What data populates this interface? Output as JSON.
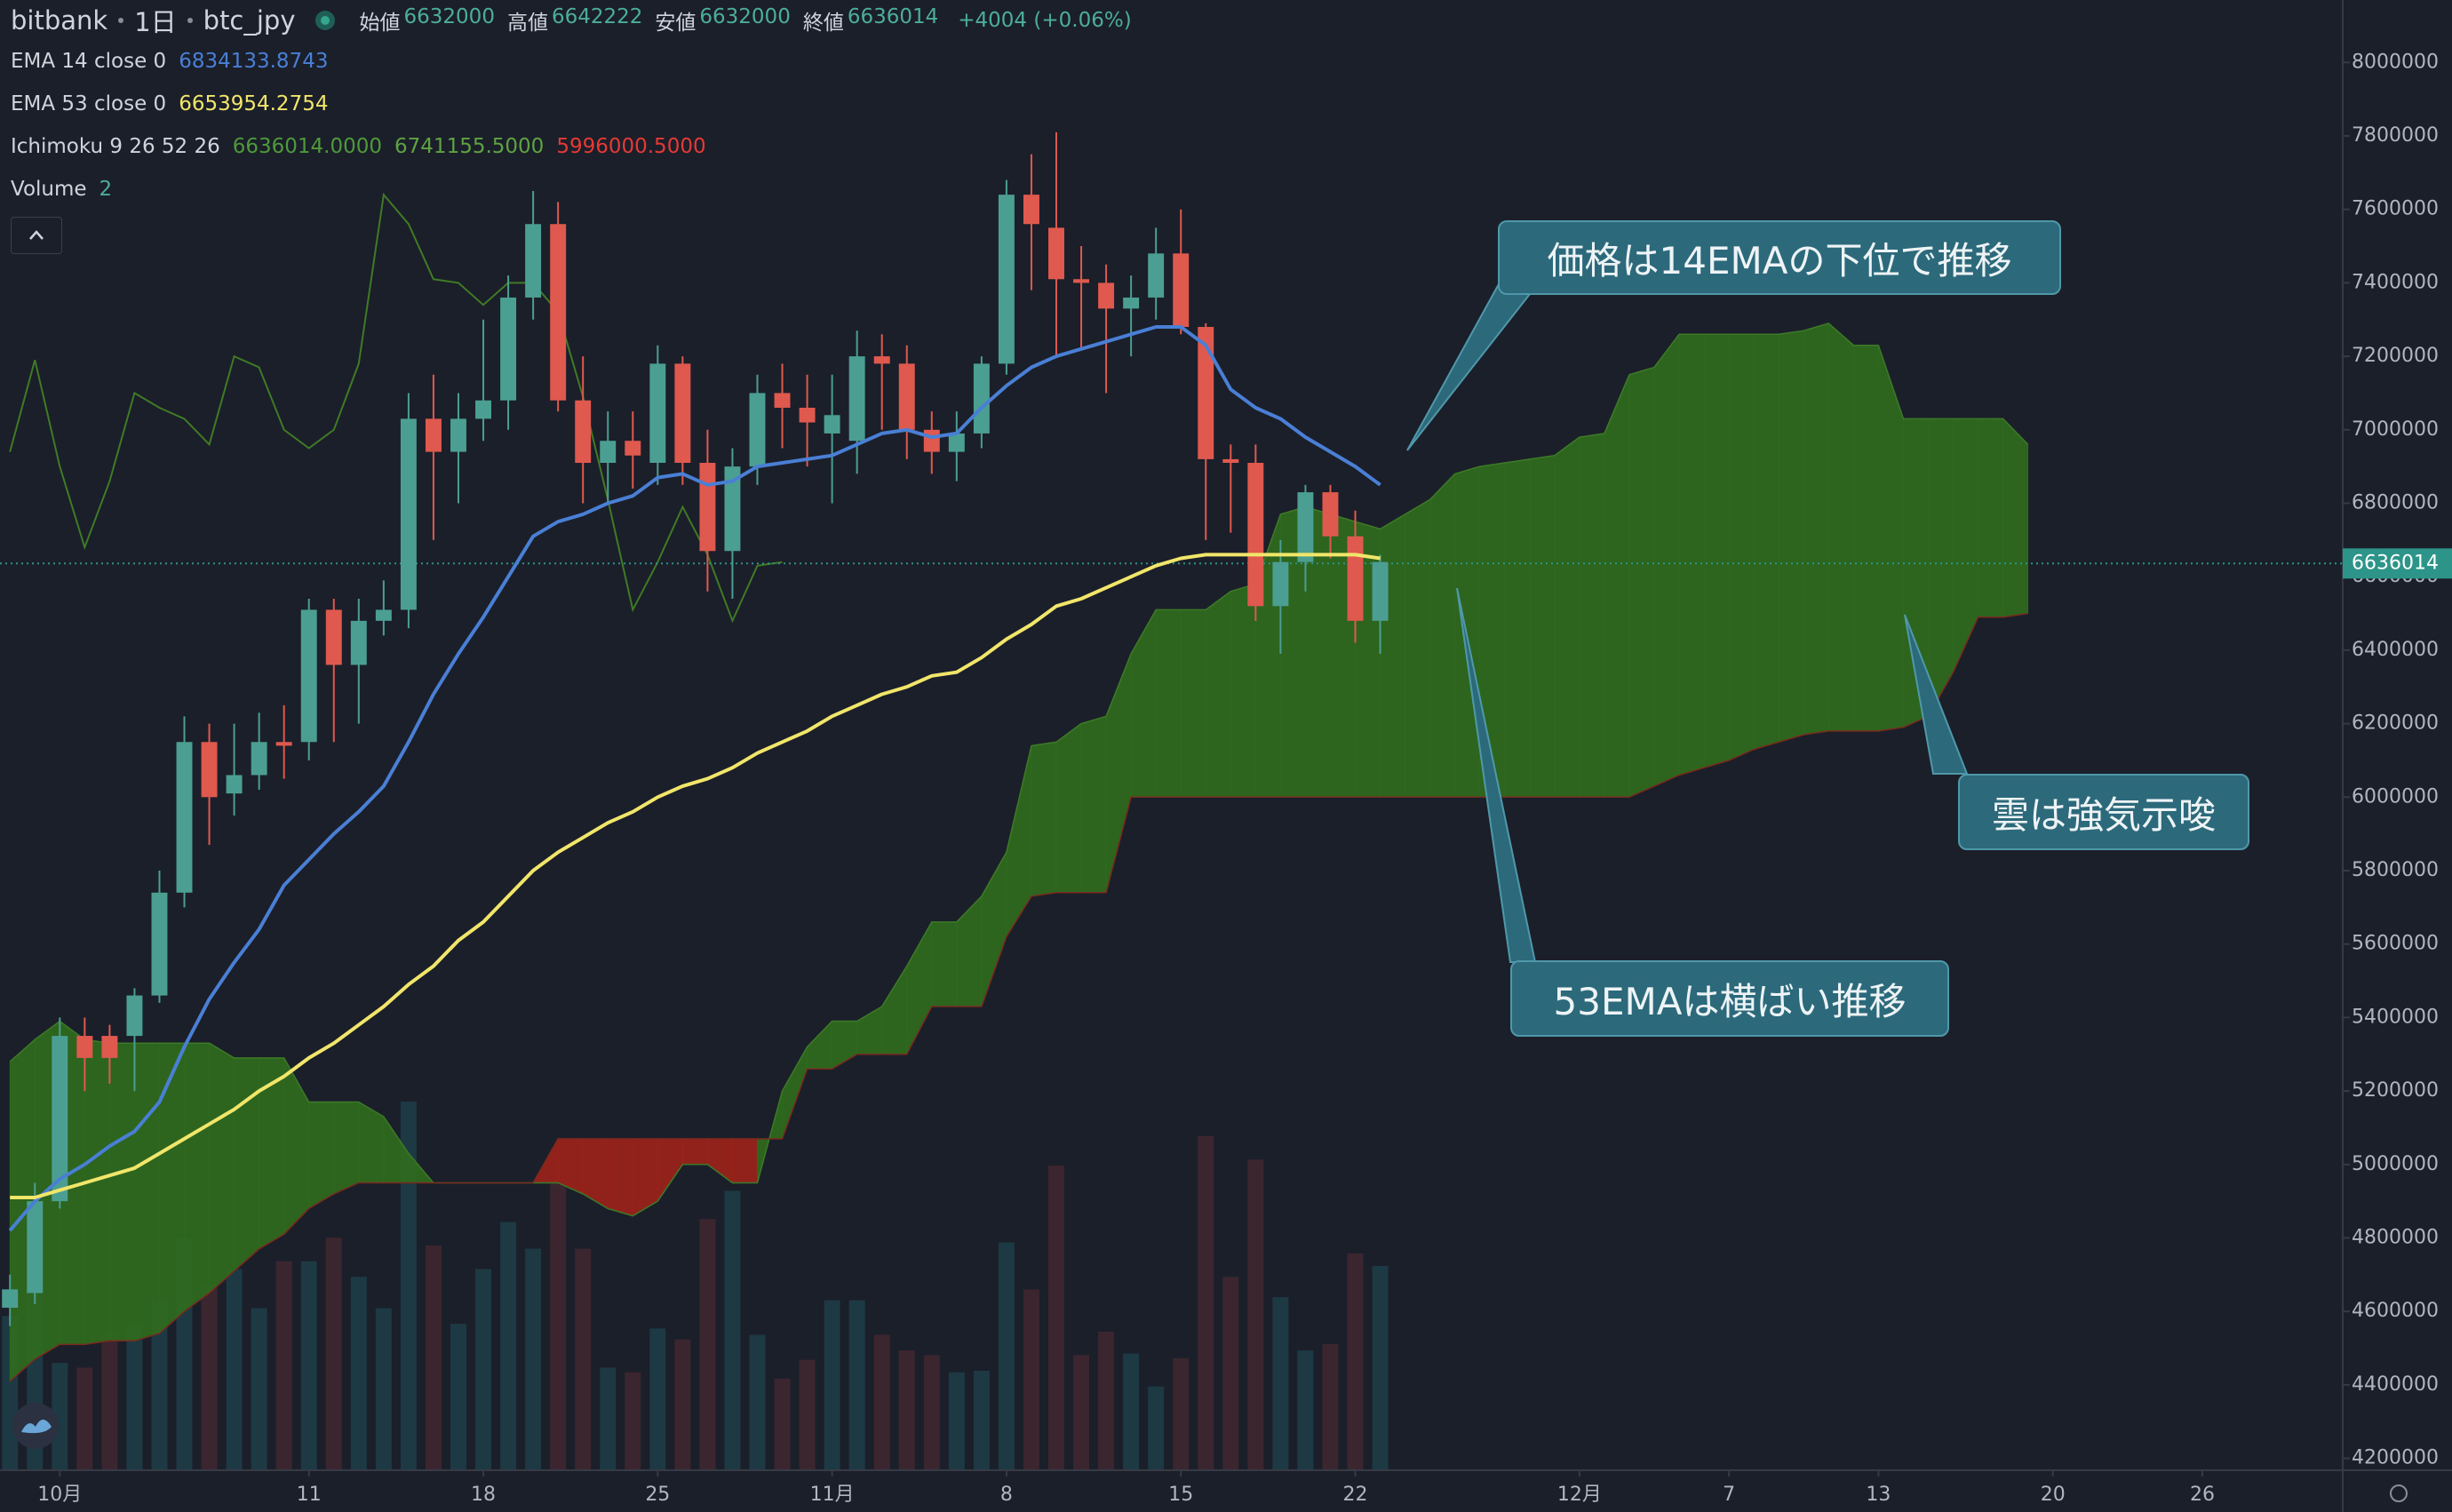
{
  "chart_data": {
    "type": "candlestick",
    "header": {
      "exchange": "bitbank",
      "interval": "1日",
      "symbol": "btc_jpy",
      "ohlc": [
        {
          "label": "始値",
          "value": "6632000"
        },
        {
          "label": "高値",
          "value": "6642222"
        },
        {
          "label": "安値",
          "value": "6632000"
        },
        {
          "label": "終値",
          "value": "6636014"
        }
      ],
      "change": "+4004 (+0.06%)"
    },
    "x": [
      0,
      1,
      2,
      3,
      4,
      5,
      6,
      7,
      8,
      9,
      10,
      11,
      12,
      13,
      14,
      15,
      16,
      17,
      18,
      19,
      20,
      21,
      22,
      23,
      24,
      25,
      26,
      27,
      28,
      29,
      30,
      31,
      32,
      33,
      34,
      35,
      36,
      37,
      38,
      39,
      40,
      41,
      42,
      43,
      44,
      45,
      46,
      47,
      48,
      49,
      50,
      51,
      52,
      53,
      54,
      55
    ],
    "open": [
      4610000,
      4650000,
      4900000,
      5350000,
      5350000,
      5350000,
      5460000,
      5740000,
      6150000,
      6010000,
      6060000,
      6150000,
      6150000,
      6510000,
      6360000,
      6480000,
      6510000,
      7030000,
      6940000,
      7030000,
      7080000,
      7360000,
      7560000,
      7080000,
      6910000,
      6970000,
      6910000,
      7180000,
      6910000,
      6670000,
      6900000,
      7100000,
      7060000,
      6990000,
      6970000,
      7200000,
      7180000,
      7000000,
      6940000,
      6990000,
      7180000,
      7640000,
      7550000,
      7410000,
      7400000,
      7330000,
      7360000,
      7480000,
      7280000,
      6920000,
      6910000,
      6520000,
      6640000,
      6830000,
      6710000,
      6480000
    ],
    "high": [
      4700000,
      4950000,
      5400000,
      5400000,
      5380000,
      5480000,
      5800000,
      6220000,
      6200000,
      6200000,
      6230000,
      6250000,
      6540000,
      6540000,
      6540000,
      6590000,
      7100000,
      7150000,
      7100000,
      7300000,
      7420000,
      7650000,
      7620000,
      7200000,
      7050000,
      7050000,
      7230000,
      7200000,
      7000000,
      6950000,
      7150000,
      7180000,
      7150000,
      7150000,
      7270000,
      7260000,
      7230000,
      7050000,
      7050000,
      7200000,
      7680000,
      7750000,
      7810000,
      7500000,
      7450000,
      7420000,
      7550000,
      7600000,
      7290000,
      6960000,
      6960000,
      6700000,
      6850000,
      6850000,
      6780000,
      6660000
    ],
    "low": [
      4560000,
      4620000,
      4880000,
      5200000,
      5220000,
      5200000,
      5440000,
      5700000,
      5870000,
      5950000,
      6020000,
      6050000,
      6100000,
      6150000,
      6200000,
      6440000,
      6460000,
      6700000,
      6800000,
      6970000,
      7000000,
      7300000,
      7050000,
      6800000,
      6800000,
      6840000,
      6850000,
      6850000,
      6560000,
      6540000,
      6850000,
      6950000,
      6900000,
      6800000,
      6880000,
      7000000,
      6920000,
      6880000,
      6860000,
      6950000,
      7150000,
      7380000,
      7200000,
      7220000,
      7100000,
      7200000,
      7300000,
      7260000,
      6700000,
      6720000,
      6480000,
      6390000,
      6560000,
      6650000,
      6420000,
      6390000
    ],
    "close": [
      4660000,
      4900000,
      5350000,
      5290000,
      5290000,
      5460000,
      5740000,
      6150000,
      6000000,
      6060000,
      6150000,
      6140000,
      6510000,
      6360000,
      6480000,
      6510000,
      7030000,
      6940000,
      7030000,
      7080000,
      7360000,
      7560000,
      7080000,
      6910000,
      6970000,
      6930000,
      7180000,
      6910000,
      6670000,
      6900000,
      7100000,
      7060000,
      7020000,
      7040000,
      7200000,
      7180000,
      7000000,
      6940000,
      6990000,
      7180000,
      7640000,
      7560000,
      7410000,
      7400000,
      7330000,
      7360000,
      7480000,
      7280000,
      6920000,
      6910000,
      6520000,
      6640000,
      6830000,
      6710000,
      6480000,
      6640000
    ],
    "volume": [
      98,
      138,
      68,
      65,
      88,
      93,
      108,
      148,
      118,
      128,
      103,
      133,
      133,
      148,
      123,
      103,
      235,
      143,
      93,
      128,
      158,
      141,
      183,
      141,
      65,
      62,
      90,
      83,
      160,
      178,
      86,
      58,
      70,
      108,
      108,
      86,
      76,
      73,
      62,
      63,
      145,
      115,
      194,
      73,
      88,
      74,
      53,
      71,
      213,
      123,
      198,
      110,
      76,
      80,
      138,
      130
    ],
    "up_color": "#4b9e92",
    "down_color": "#e0594e",
    "volume_up_color": "#1d3a44",
    "volume_down_color": "#3b2630",
    "volume_label": "Volume",
    "volume_setting": 2,
    "ema": [
      {
        "label": "EMA 14 close 0",
        "last": "6834133.8743",
        "color": "#4a7fd6",
        "values": [
          4820000,
          4900000,
          4960000,
          5000000,
          5050000,
          5090000,
          5170000,
          5320000,
          5450000,
          5550000,
          5640000,
          5760000,
          5830000,
          5900000,
          5960000,
          6030000,
          6150000,
          6280000,
          6390000,
          6490000,
          6600000,
          6710000,
          6750000,
          6770000,
          6800000,
          6820000,
          6870000,
          6880000,
          6850000,
          6860000,
          6900000,
          6910000,
          6920000,
          6930000,
          6960000,
          6990000,
          7000000,
          6980000,
          6990000,
          7060000,
          7120000,
          7170000,
          7200000,
          7220000,
          7240000,
          7260000,
          7280000,
          7280000,
          7230000,
          7110000,
          7060000,
          7030000,
          6980000,
          6940000,
          6900000,
          6850000
        ]
      },
      {
        "label": "EMA 53 close 0",
        "last": "6653954.2754",
        "color": "#f2e66a",
        "values": [
          4910000,
          4910000,
          4930000,
          4950000,
          4970000,
          4990000,
          5030000,
          5070000,
          5110000,
          5150000,
          5200000,
          5240000,
          5290000,
          5330000,
          5380000,
          5430000,
          5490000,
          5540000,
          5610000,
          5660000,
          5730000,
          5800000,
          5850000,
          5890000,
          5930000,
          5960000,
          6000000,
          6030000,
          6050000,
          6080000,
          6120000,
          6150000,
          6180000,
          6220000,
          6250000,
          6280000,
          6300000,
          6330000,
          6340000,
          6380000,
          6430000,
          6470000,
          6520000,
          6540000,
          6570000,
          6600000,
          6630000,
          6650000,
          6660000,
          6660000,
          6660000,
          6660000,
          6660000,
          6660000,
          6660000,
          6650000
        ]
      }
    ],
    "ichimoku": {
      "label": "Ichimoku 9 26 52 26",
      "last": [
        "6636014.0000",
        "6741155.5000",
        "5996000.5000"
      ],
      "last_colors": [
        "#4e9a3a",
        "#5fa241",
        "#e53935"
      ],
      "bull_color": "#2f6b1e",
      "bear_color": "#9b231a",
      "span_a_color": "#3d7a27",
      "span_b_color": "#7a2a1c",
      "lagging_color": "#3f7a24",
      "x": [
        0,
        1,
        2,
        3,
        4,
        5,
        6,
        7,
        8,
        9,
        10,
        11,
        12,
        13,
        14,
        15,
        16,
        17,
        18,
        19,
        20,
        21,
        22,
        23,
        24,
        25,
        26,
        27,
        28,
        29,
        30,
        31,
        32,
        33,
        34,
        35,
        36,
        37,
        38,
        39,
        40,
        41,
        42,
        43,
        44,
        45,
        46,
        47,
        48,
        49,
        50,
        51,
        52,
        53,
        54,
        55,
        56,
        57,
        58,
        59,
        60,
        61,
        62,
        63,
        64,
        65,
        66,
        67,
        68,
        69,
        70,
        71,
        72,
        73,
        74,
        75,
        76,
        77,
        78,
        79,
        80,
        81
      ],
      "span_a": [
        5280000,
        5340000,
        5390000,
        5340000,
        5330000,
        5330000,
        5330000,
        5330000,
        5330000,
        5290000,
        5290000,
        5290000,
        5170000,
        5170000,
        5170000,
        5130000,
        5030000,
        4950000,
        4950000,
        4950000,
        4950000,
        4950000,
        4950000,
        4920000,
        4880000,
        4860000,
        4900000,
        5000000,
        5000000,
        4950000,
        4950000,
        5200000,
        5320000,
        5390000,
        5390000,
        5430000,
        5540000,
        5660000,
        5660000,
        5730000,
        5850000,
        6140000,
        6150000,
        6200000,
        6220000,
        6390000,
        6510000,
        6510000,
        6510000,
        6560000,
        6580000,
        6770000,
        6790000,
        6770000,
        6750000,
        6730000,
        6770000,
        6810000,
        6880000,
        6900000,
        6910000,
        6920000,
        6930000,
        6980000,
        6990000,
        7150000,
        7170000,
        7260000,
        7260000,
        7260000,
        7260000,
        7260000,
        7270000,
        7290000,
        7230000,
        7230000,
        7030000,
        7030000,
        7030000,
        7030000,
        7030000,
        6960000
      ],
      "span_b": [
        4410000,
        4470000,
        4510000,
        4510000,
        4520000,
        4520000,
        4540000,
        4600000,
        4650000,
        4710000,
        4770000,
        4810000,
        4880000,
        4920000,
        4950000,
        4950000,
        4950000,
        4950000,
        4950000,
        4950000,
        4950000,
        4950000,
        5070000,
        5070000,
        5070000,
        5070000,
        5070000,
        5070000,
        5070000,
        5070000,
        5070000,
        5070000,
        5260000,
        5260000,
        5300000,
        5300000,
        5300000,
        5430000,
        5430000,
        5430000,
        5620000,
        5730000,
        5740000,
        5740000,
        5740000,
        6000000,
        6000000,
        6000000,
        6000000,
        6000000,
        6000000,
        6000000,
        6000000,
        6000000,
        6000000,
        6000000,
        6000000,
        6000000,
        6000000,
        6000000,
        6000000,
        6000000,
        6000000,
        6000000,
        6000000,
        6000000,
        6030000,
        6060000,
        6080000,
        6100000,
        6130000,
        6150000,
        6170000,
        6180000,
        6180000,
        6180000,
        6190000,
        6220000,
        6340000,
        6490000,
        6490000,
        6500000
      ],
      "lagging_x": [
        0,
        1,
        2,
        3,
        4,
        5,
        6,
        7,
        8,
        9,
        10,
        11,
        12,
        13,
        14,
        15,
        16,
        17,
        18,
        19,
        20,
        21,
        22,
        23,
        24,
        25,
        26,
        27,
        28,
        29,
        30,
        31
      ],
      "lagging": [
        6940000,
        7190000,
        6900000,
        6680000,
        6860000,
        7100000,
        7060000,
        7030000,
        6960000,
        7200000,
        7170000,
        7000000,
        6950000,
        7000000,
        7180000,
        7640000,
        7560000,
        7410000,
        7400000,
        7340000,
        7400000,
        7400000,
        7320000,
        7090000,
        6810000,
        6510000,
        6640000,
        6790000,
        6660000,
        6480000,
        6630000,
        6640000
      ]
    },
    "price_line": 6636014,
    "price_line_color": "#2c9488",
    "annotations": [
      {
        "text": "価格は14EMAの下位で推移"
      },
      {
        "text": "雲は強気示唆"
      },
      {
        "text": "53EMAは横ばい推移"
      }
    ],
    "xlim": [
      -0.4,
      93.6
    ],
    "xticks": [
      {
        "value": 2,
        "label": "10月"
      },
      {
        "value": 12,
        "label": "11"
      },
      {
        "value": 19,
        "label": "18"
      },
      {
        "value": 26,
        "label": "25"
      },
      {
        "value": 33,
        "label": "11月"
      },
      {
        "value": 40,
        "label": "8"
      },
      {
        "value": 47,
        "label": "15"
      },
      {
        "value": 54,
        "label": "22"
      },
      {
        "value": 63,
        "label": "12月"
      },
      {
        "value": 69,
        "label": "7"
      },
      {
        "value": 75,
        "label": "13"
      },
      {
        "value": 82,
        "label": "20"
      },
      {
        "value": 88,
        "label": "26"
      }
    ],
    "ylim": [
      4170000,
      8170000
    ],
    "yticks": [
      4200000,
      4400000,
      4600000,
      4800000,
      5000000,
      5200000,
      5400000,
      5600000,
      5800000,
      6000000,
      6200000,
      6400000,
      6600000,
      6800000,
      7000000,
      7200000,
      7400000,
      7600000,
      7800000,
      8000000
    ]
  }
}
